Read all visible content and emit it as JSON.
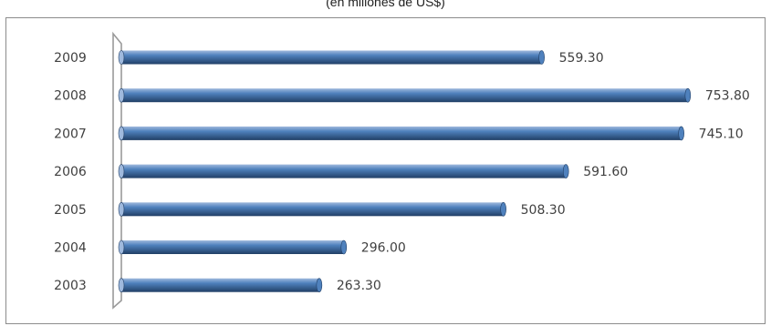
{
  "subtitle": "(en millones de US$)",
  "colors": {
    "bar_top": "#9fb9dd",
    "bar_mid": "#4f81bd",
    "bar_bottom": "#213f66",
    "label": "#404040",
    "axis": "#9a9a9a"
  },
  "chart_data": {
    "type": "bar",
    "orientation": "horizontal",
    "style": "3d-cylinder",
    "title": "",
    "subtitle": "(en millones de US$)",
    "xlabel": "",
    "ylabel": "",
    "categories": [
      "2009",
      "2008",
      "2007",
      "2006",
      "2005",
      "2004",
      "2003"
    ],
    "values": [
      559.3,
      753.8,
      745.1,
      591.6,
      508.3,
      296.0,
      263.3
    ],
    "value_labels": [
      "559.30",
      "753.80",
      "745.10",
      "591.60",
      "508.30",
      "296.00",
      "263.30"
    ],
    "xlim": [
      0,
      760
    ],
    "grid": false,
    "legend": "none"
  }
}
